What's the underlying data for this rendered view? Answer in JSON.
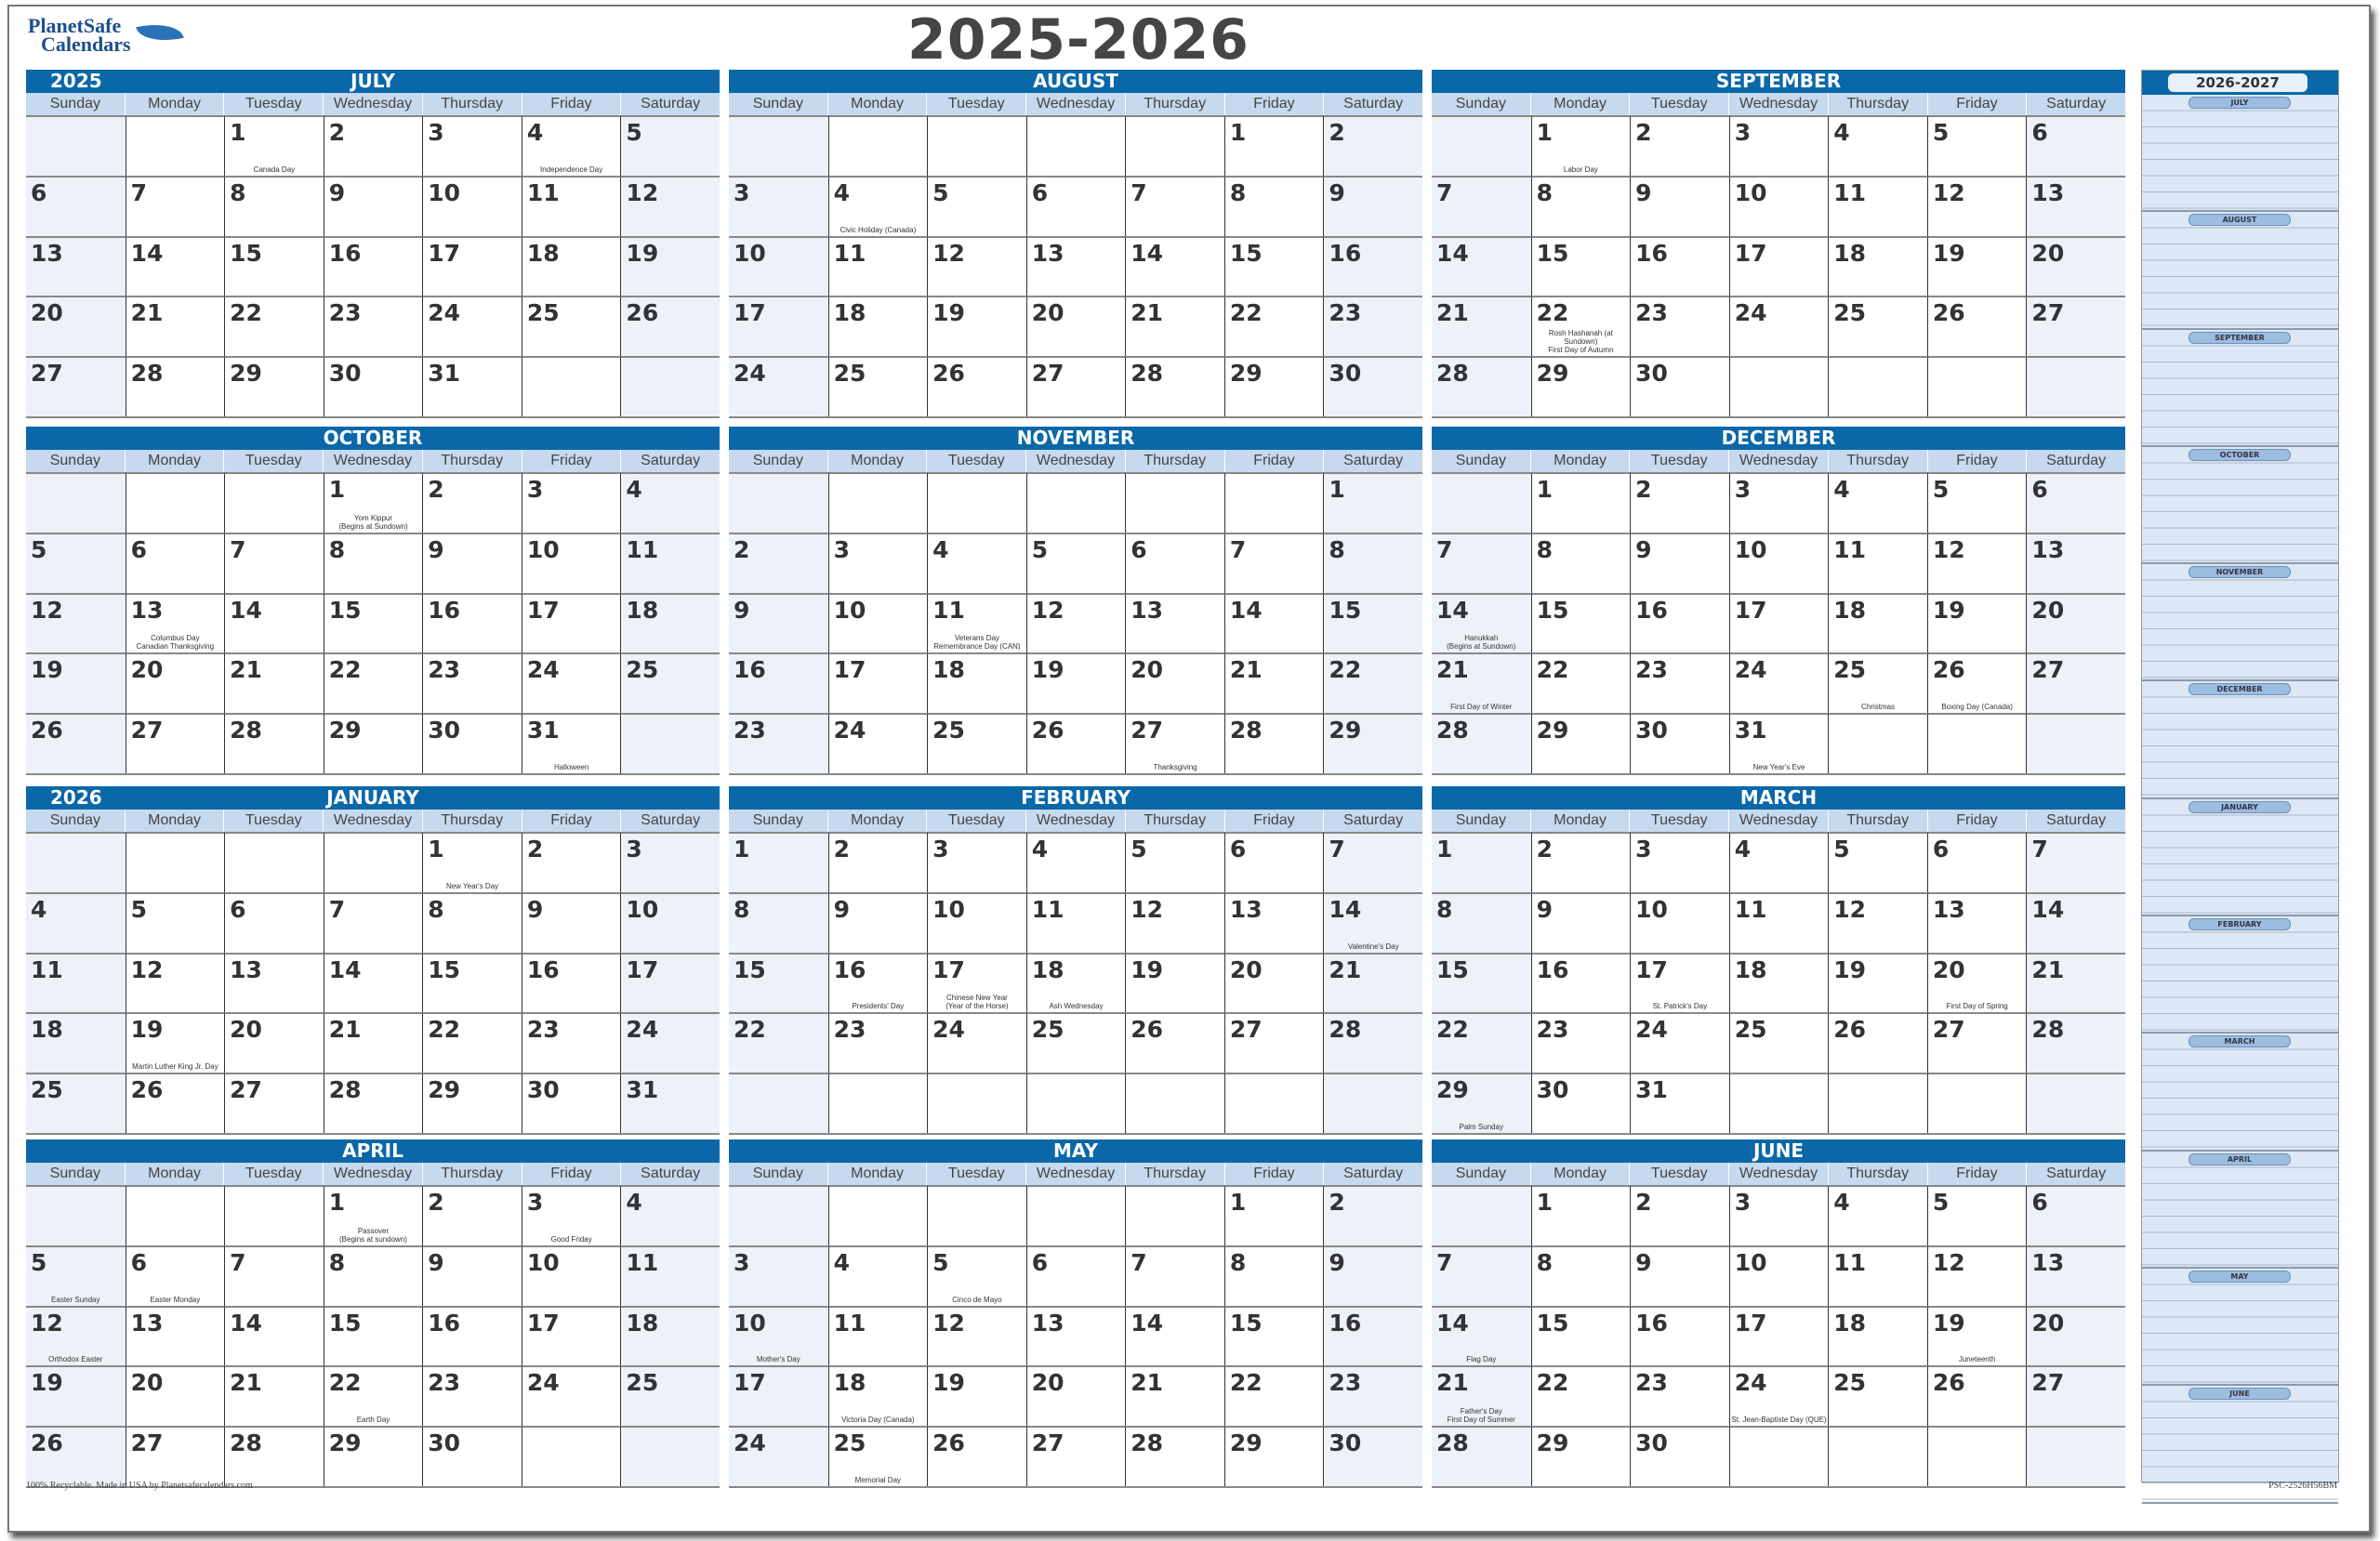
{
  "brand": {
    "line1": "PlanetSafe",
    "line2": "Calendars"
  },
  "title": "2025-2026",
  "weekdays": [
    "Sunday",
    "Monday",
    "Tuesday",
    "Wednesday",
    "Thursday",
    "Friday",
    "Saturday"
  ],
  "colors": {
    "header": "#0a68a8",
    "weekday_row": "#c6d9ee",
    "weekend": "#edf2f9",
    "sidebar": "#dce8f5"
  },
  "months": [
    {
      "name": "JULY",
      "year": "2025",
      "first_weekday": 2,
      "days": 31,
      "holidays": {
        "1": "Canada Day",
        "4": "Independence Day"
      }
    },
    {
      "name": "AUGUST",
      "year": "",
      "first_weekday": 5,
      "days": 31,
      "holidays": {
        "4": "Civic Holiday (Canada)"
      }
    },
    {
      "name": "SEPTEMBER",
      "year": "",
      "first_weekday": 1,
      "days": 30,
      "holidays": {
        "1": "Labor Day",
        "22": "Rosh Hashanah (at Sundown)\nFirst Day of Autumn"
      }
    },
    {
      "name": "OCTOBER",
      "year": "",
      "first_weekday": 3,
      "days": 31,
      "holidays": {
        "1": "Yom Kippur\n(Begins at Sundown)",
        "13": "Columbus Day\nCanadian Thanksgiving",
        "31": "Halloween"
      }
    },
    {
      "name": "NOVEMBER",
      "year": "",
      "first_weekday": 6,
      "days": 30,
      "holidays": {
        "11": "Veterans Day\nRemembrance Day (CAN)",
        "27": "Thanksgiving"
      }
    },
    {
      "name": "DECEMBER",
      "year": "",
      "first_weekday": 1,
      "days": 31,
      "holidays": {
        "14": "Hanukkah\n(Begins at Sundown)",
        "21": "First Day of Winter",
        "25": "Christmas",
        "26": "Boxing Day (Canada)",
        "31": "New Year's Eve"
      }
    },
    {
      "name": "JANUARY",
      "year": "2026",
      "first_weekday": 4,
      "days": 31,
      "holidays": {
        "1": "New Year's Day",
        "19": "Martin Luther King Jr. Day"
      }
    },
    {
      "name": "FEBRUARY",
      "year": "",
      "first_weekday": 0,
      "days": 28,
      "holidays": {
        "14": "Valentine's Day",
        "16": "Presidents' Day",
        "17": "Chinese New Year\n(Year of the Horse)",
        "18": "Ash Wednesday"
      }
    },
    {
      "name": "MARCH",
      "year": "",
      "first_weekday": 0,
      "days": 31,
      "holidays": {
        "17": "St. Patrick's Day",
        "20": "First Day of Spring",
        "29": "Palm Sunday"
      }
    },
    {
      "name": "APRIL",
      "year": "",
      "first_weekday": 3,
      "days": 30,
      "holidays": {
        "1": "Passover\n(Begins at sundown)",
        "3": "Good Friday",
        "5": "Easter Sunday",
        "6": "Easter Monday",
        "12": "Orthodox Easter",
        "22": "Earth Day"
      }
    },
    {
      "name": "MAY",
      "year": "",
      "first_weekday": 5,
      "days": 31,
      "holidays": {
        "5": "Cinco de Mayo",
        "10": "Mother's Day",
        "18": "Victoria Day (Canada)",
        "25": "Memorial Day"
      }
    },
    {
      "name": "JUNE",
      "year": "",
      "first_weekday": 1,
      "days": 30,
      "holidays": {
        "14": "Flag Day",
        "19": "Juneteenth",
        "21": "Father's Day\nFirst Day of Summer",
        "24": "St. Jean-Baptiste Day (QUE)"
      }
    }
  ],
  "sidebar": {
    "title": "2026-2027",
    "months": [
      "JULY",
      "AUGUST",
      "SEPTEMBER",
      "OCTOBER",
      "NOVEMBER",
      "DECEMBER",
      "JANUARY",
      "FEBRUARY",
      "MARCH",
      "APRIL",
      "MAY",
      "JUNE"
    ]
  },
  "footer": {
    "left": "100% Recyclable. Made in USA by Planetsafecalendars.com",
    "right": "PSC-2526H56BM"
  }
}
